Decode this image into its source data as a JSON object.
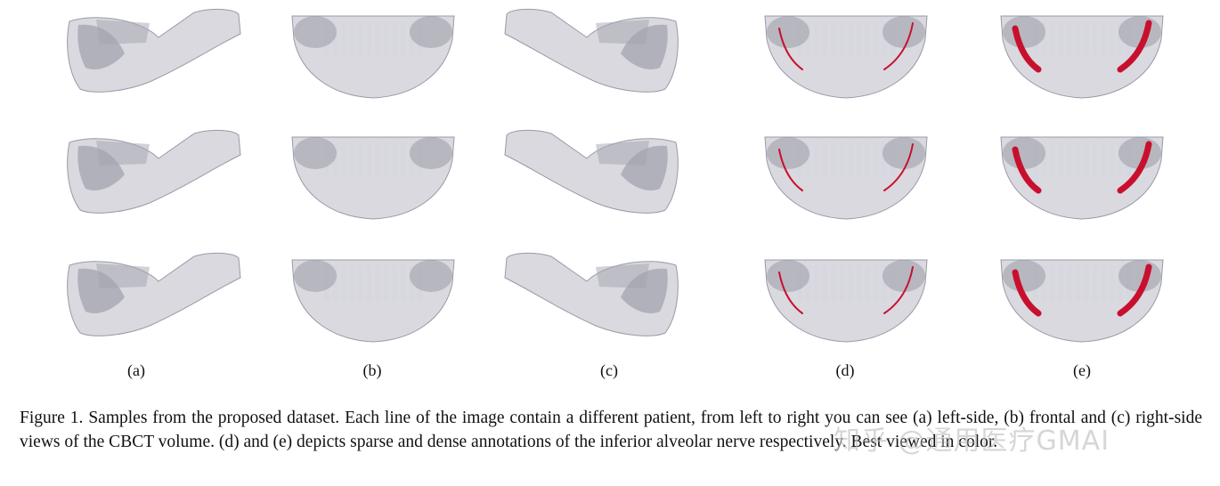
{
  "figure": {
    "sublabels": [
      "(a)",
      "(b)",
      "(c)",
      "(d)",
      "(e)"
    ],
    "annotation_color": "#c8102e",
    "volume_color": "#b9b9c4"
  },
  "caption": {
    "label": "Figure 1.",
    "text": "Samples from the proposed dataset. Each line of the image contain a different patient, from left to right you can see (a) left-side, (b) frontal and (c) right-side views of the CBCT volume. (d) and (e) depicts sparse and dense annotations of the inferior alveolar nerve respectively. Best viewed in color."
  },
  "watermark": "知乎 @通用医疗GMAI"
}
